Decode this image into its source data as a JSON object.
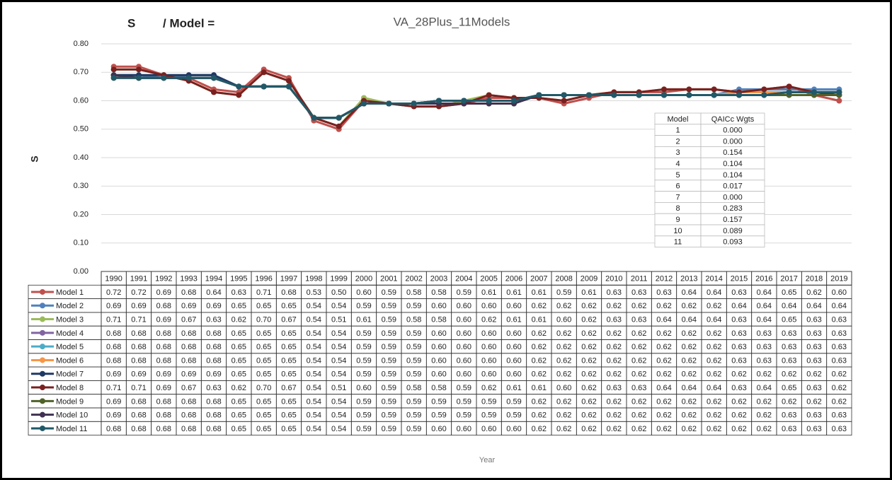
{
  "chart_data": {
    "type": "line",
    "title": "S",
    "title_suffix": "/ Model =",
    "subtitle": "VA_28Plus_11Models",
    "y_label": "S",
    "x_label": "Year",
    "grid": true,
    "ylim": [
      0,
      0.8
    ],
    "yticks": [
      {
        "value": 0,
        "label": "0.00"
      },
      {
        "value": 0.1,
        "label": "0.10"
      },
      {
        "value": 0.2,
        "label": "0.20"
      },
      {
        "value": 0.3,
        "label": "0.30"
      },
      {
        "value": 0.4,
        "label": "0.40"
      },
      {
        "value": 0.5,
        "label": "0.50"
      },
      {
        "value": 0.6,
        "label": "0.60"
      },
      {
        "value": 0.7,
        "label": "0.70"
      },
      {
        "value": 0.8,
        "label": "0.80"
      }
    ],
    "categories": [
      "1990",
      "1991",
      "1992",
      "1993",
      "1994",
      "1995",
      "1996",
      "1997",
      "1998",
      "1999",
      "2000",
      "2001",
      "2002",
      "2003",
      "2004",
      "2005",
      "2006",
      "2007",
      "2008",
      "2009",
      "2010",
      "2011",
      "2012",
      "2013",
      "2014",
      "2015",
      "2016",
      "2017",
      "2018",
      "2019"
    ],
    "series": [
      {
        "name": "Model 1",
        "color": "#c0504d",
        "values": [
          0.72,
          0.72,
          0.69,
          0.68,
          0.64,
          0.63,
          0.71,
          0.68,
          0.53,
          0.5,
          0.6,
          0.59,
          0.58,
          0.58,
          0.59,
          0.61,
          0.61,
          0.61,
          0.59,
          0.61,
          0.63,
          0.63,
          0.63,
          0.64,
          0.64,
          0.63,
          0.64,
          0.65,
          0.62,
          0.6
        ],
        "value_labels": [
          "0.72",
          "0.72",
          "0.69",
          "0.68",
          "0.64",
          "0.63",
          "0.71",
          "0.68",
          "0.53",
          "0.50",
          "0.60",
          "0.59",
          "0.58",
          "0.58",
          "0.59",
          "0.61",
          "0.61",
          "0.61",
          "0.59",
          "0.61",
          "0.63",
          "0.63",
          "0.63",
          "0.64",
          "0.64",
          "0.63",
          "0.64",
          "0.65",
          "0.62",
          "0.60"
        ]
      },
      {
        "name": "Model 2",
        "color": "#4f81bd",
        "values": [
          0.69,
          0.69,
          0.68,
          0.69,
          0.69,
          0.65,
          0.65,
          0.65,
          0.54,
          0.54,
          0.59,
          0.59,
          0.59,
          0.6,
          0.6,
          0.6,
          0.6,
          0.62,
          0.62,
          0.62,
          0.62,
          0.62,
          0.62,
          0.62,
          0.62,
          0.64,
          0.64,
          0.64,
          0.64,
          0.64
        ],
        "value_labels": [
          "0.69",
          "0.69",
          "0.68",
          "0.69",
          "0.69",
          "0.65",
          "0.65",
          "0.65",
          "0.54",
          "0.54",
          "0.59",
          "0.59",
          "0.59",
          "0.60",
          "0.60",
          "0.60",
          "0.60",
          "0.62",
          "0.62",
          "0.62",
          "0.62",
          "0.62",
          "0.62",
          "0.62",
          "0.62",
          "0.64",
          "0.64",
          "0.64",
          "0.64",
          "0.64"
        ]
      },
      {
        "name": "Model 3",
        "color": "#9bbb59",
        "values": [
          0.71,
          0.71,
          0.69,
          0.67,
          0.63,
          0.62,
          0.7,
          0.67,
          0.54,
          0.51,
          0.61,
          0.59,
          0.58,
          0.58,
          0.6,
          0.62,
          0.61,
          0.61,
          0.6,
          0.62,
          0.63,
          0.63,
          0.64,
          0.64,
          0.64,
          0.63,
          0.64,
          0.65,
          0.63,
          0.63
        ],
        "value_labels": [
          "0.71",
          "0.71",
          "0.69",
          "0.67",
          "0.63",
          "0.62",
          "0.70",
          "0.67",
          "0.54",
          "0.51",
          "0.61",
          "0.59",
          "0.58",
          "0.58",
          "0.60",
          "0.62",
          "0.61",
          "0.61",
          "0.60",
          "0.62",
          "0.63",
          "0.63",
          "0.64",
          "0.64",
          "0.64",
          "0.63",
          "0.64",
          "0.65",
          "0.63",
          "0.63"
        ]
      },
      {
        "name": "Model 4",
        "color": "#8064a2",
        "values": [
          0.68,
          0.68,
          0.68,
          0.68,
          0.68,
          0.65,
          0.65,
          0.65,
          0.54,
          0.54,
          0.59,
          0.59,
          0.59,
          0.6,
          0.6,
          0.6,
          0.6,
          0.62,
          0.62,
          0.62,
          0.62,
          0.62,
          0.62,
          0.62,
          0.62,
          0.63,
          0.63,
          0.63,
          0.63,
          0.63
        ],
        "value_labels": [
          "0.68",
          "0.68",
          "0.68",
          "0.68",
          "0.68",
          "0.65",
          "0.65",
          "0.65",
          "0.54",
          "0.54",
          "0.59",
          "0.59",
          "0.59",
          "0.60",
          "0.60",
          "0.60",
          "0.60",
          "0.62",
          "0.62",
          "0.62",
          "0.62",
          "0.62",
          "0.62",
          "0.62",
          "0.62",
          "0.63",
          "0.63",
          "0.63",
          "0.63",
          "0.63"
        ]
      },
      {
        "name": "Model 5",
        "color": "#4bacc6",
        "values": [
          0.68,
          0.68,
          0.68,
          0.68,
          0.68,
          0.65,
          0.65,
          0.65,
          0.54,
          0.54,
          0.59,
          0.59,
          0.59,
          0.6,
          0.6,
          0.6,
          0.6,
          0.62,
          0.62,
          0.62,
          0.62,
          0.62,
          0.62,
          0.62,
          0.62,
          0.63,
          0.63,
          0.63,
          0.63,
          0.63
        ],
        "value_labels": [
          "0.68",
          "0.68",
          "0.68",
          "0.68",
          "0.68",
          "0.65",
          "0.65",
          "0.65",
          "0.54",
          "0.54",
          "0.59",
          "0.59",
          "0.59",
          "0.60",
          "0.60",
          "0.60",
          "0.60",
          "0.62",
          "0.62",
          "0.62",
          "0.62",
          "0.62",
          "0.62",
          "0.62",
          "0.62",
          "0.63",
          "0.63",
          "0.63",
          "0.63",
          "0.63"
        ]
      },
      {
        "name": "Model 6",
        "color": "#f79646",
        "values": [
          0.68,
          0.68,
          0.68,
          0.68,
          0.68,
          0.65,
          0.65,
          0.65,
          0.54,
          0.54,
          0.59,
          0.59,
          0.59,
          0.6,
          0.6,
          0.6,
          0.6,
          0.62,
          0.62,
          0.62,
          0.62,
          0.62,
          0.62,
          0.62,
          0.62,
          0.63,
          0.63,
          0.63,
          0.63,
          0.63
        ],
        "value_labels": [
          "0.68",
          "0.68",
          "0.68",
          "0.68",
          "0.68",
          "0.65",
          "0.65",
          "0.65",
          "0.54",
          "0.54",
          "0.59",
          "0.59",
          "0.59",
          "0.60",
          "0.60",
          "0.60",
          "0.60",
          "0.62",
          "0.62",
          "0.62",
          "0.62",
          "0.62",
          "0.62",
          "0.62",
          "0.62",
          "0.63",
          "0.63",
          "0.63",
          "0.63",
          "0.63"
        ]
      },
      {
        "name": "Model 7",
        "color": "#1f3864",
        "values": [
          0.69,
          0.69,
          0.69,
          0.69,
          0.69,
          0.65,
          0.65,
          0.65,
          0.54,
          0.54,
          0.59,
          0.59,
          0.59,
          0.6,
          0.6,
          0.6,
          0.6,
          0.62,
          0.62,
          0.62,
          0.62,
          0.62,
          0.62,
          0.62,
          0.62,
          0.62,
          0.62,
          0.62,
          0.62,
          0.62
        ],
        "value_labels": [
          "0.69",
          "0.69",
          "0.69",
          "0.69",
          "0.69",
          "0.65",
          "0.65",
          "0.65",
          "0.54",
          "0.54",
          "0.59",
          "0.59",
          "0.59",
          "0.60",
          "0.60",
          "0.60",
          "0.60",
          "0.62",
          "0.62",
          "0.62",
          "0.62",
          "0.62",
          "0.62",
          "0.62",
          "0.62",
          "0.62",
          "0.62",
          "0.62",
          "0.62",
          "0.62"
        ]
      },
      {
        "name": "Model 8",
        "color": "#7b2020",
        "values": [
          0.71,
          0.71,
          0.69,
          0.67,
          0.63,
          0.62,
          0.7,
          0.67,
          0.54,
          0.51,
          0.6,
          0.59,
          0.58,
          0.58,
          0.59,
          0.62,
          0.61,
          0.61,
          0.6,
          0.62,
          0.63,
          0.63,
          0.64,
          0.64,
          0.64,
          0.63,
          0.64,
          0.65,
          0.63,
          0.62
        ],
        "value_labels": [
          "0.71",
          "0.71",
          "0.69",
          "0.67",
          "0.63",
          "0.62",
          "0.70",
          "0.67",
          "0.54",
          "0.51",
          "0.60",
          "0.59",
          "0.58",
          "0.58",
          "0.59",
          "0.62",
          "0.61",
          "0.61",
          "0.60",
          "0.62",
          "0.63",
          "0.63",
          "0.64",
          "0.64",
          "0.64",
          "0.63",
          "0.64",
          "0.65",
          "0.63",
          "0.62"
        ]
      },
      {
        "name": "Model 9",
        "color": "#4f6228",
        "values": [
          0.69,
          0.68,
          0.68,
          0.68,
          0.68,
          0.65,
          0.65,
          0.65,
          0.54,
          0.54,
          0.59,
          0.59,
          0.59,
          0.59,
          0.59,
          0.59,
          0.59,
          0.62,
          0.62,
          0.62,
          0.62,
          0.62,
          0.62,
          0.62,
          0.62,
          0.62,
          0.62,
          0.62,
          0.62,
          0.62
        ],
        "value_labels": [
          "0.69",
          "0.68",
          "0.68",
          "0.68",
          "0.68",
          "0.65",
          "0.65",
          "0.65",
          "0.54",
          "0.54",
          "0.59",
          "0.59",
          "0.59",
          "0.59",
          "0.59",
          "0.59",
          "0.59",
          "0.62",
          "0.62",
          "0.62",
          "0.62",
          "0.62",
          "0.62",
          "0.62",
          "0.62",
          "0.62",
          "0.62",
          "0.62",
          "0.62",
          "0.62"
        ]
      },
      {
        "name": "Model 10",
        "color": "#3f3151",
        "values": [
          0.69,
          0.68,
          0.68,
          0.68,
          0.68,
          0.65,
          0.65,
          0.65,
          0.54,
          0.54,
          0.59,
          0.59,
          0.59,
          0.59,
          0.59,
          0.59,
          0.59,
          0.62,
          0.62,
          0.62,
          0.62,
          0.62,
          0.62,
          0.62,
          0.62,
          0.62,
          0.62,
          0.63,
          0.63,
          0.63
        ],
        "value_labels": [
          "0.69",
          "0.68",
          "0.68",
          "0.68",
          "0.68",
          "0.65",
          "0.65",
          "0.65",
          "0.54",
          "0.54",
          "0.59",
          "0.59",
          "0.59",
          "0.59",
          "0.59",
          "0.59",
          "0.59",
          "0.62",
          "0.62",
          "0.62",
          "0.62",
          "0.62",
          "0.62",
          "0.62",
          "0.62",
          "0.62",
          "0.62",
          "0.63",
          "0.63",
          "0.63"
        ]
      },
      {
        "name": "Model 11",
        "color": "#215968",
        "values": [
          0.68,
          0.68,
          0.68,
          0.68,
          0.68,
          0.65,
          0.65,
          0.65,
          0.54,
          0.54,
          0.59,
          0.59,
          0.59,
          0.6,
          0.6,
          0.6,
          0.6,
          0.62,
          0.62,
          0.62,
          0.62,
          0.62,
          0.62,
          0.62,
          0.62,
          0.62,
          0.62,
          0.63,
          0.63,
          0.63
        ],
        "value_labels": [
          "0.68",
          "0.68",
          "0.68",
          "0.68",
          "0.68",
          "0.65",
          "0.65",
          "0.65",
          "0.54",
          "0.54",
          "0.59",
          "0.59",
          "0.59",
          "0.60",
          "0.60",
          "0.60",
          "0.60",
          "0.62",
          "0.62",
          "0.62",
          "0.62",
          "0.62",
          "0.62",
          "0.62",
          "0.62",
          "0.62",
          "0.62",
          "0.63",
          "0.63",
          "0.63"
        ]
      }
    ],
    "weights_table": {
      "header": [
        "Model",
        "QAICc Wgts"
      ],
      "rows": [
        [
          "1",
          "0.000"
        ],
        [
          "2",
          "0.000"
        ],
        [
          "3",
          "0.154"
        ],
        [
          "4",
          "0.104"
        ],
        [
          "5",
          "0.104"
        ],
        [
          "6",
          "0.017"
        ],
        [
          "7",
          "0.000"
        ],
        [
          "8",
          "0.283"
        ],
        [
          "9",
          "0.157"
        ],
        [
          "10",
          "0.089"
        ],
        [
          "11",
          "0.093"
        ]
      ]
    }
  }
}
